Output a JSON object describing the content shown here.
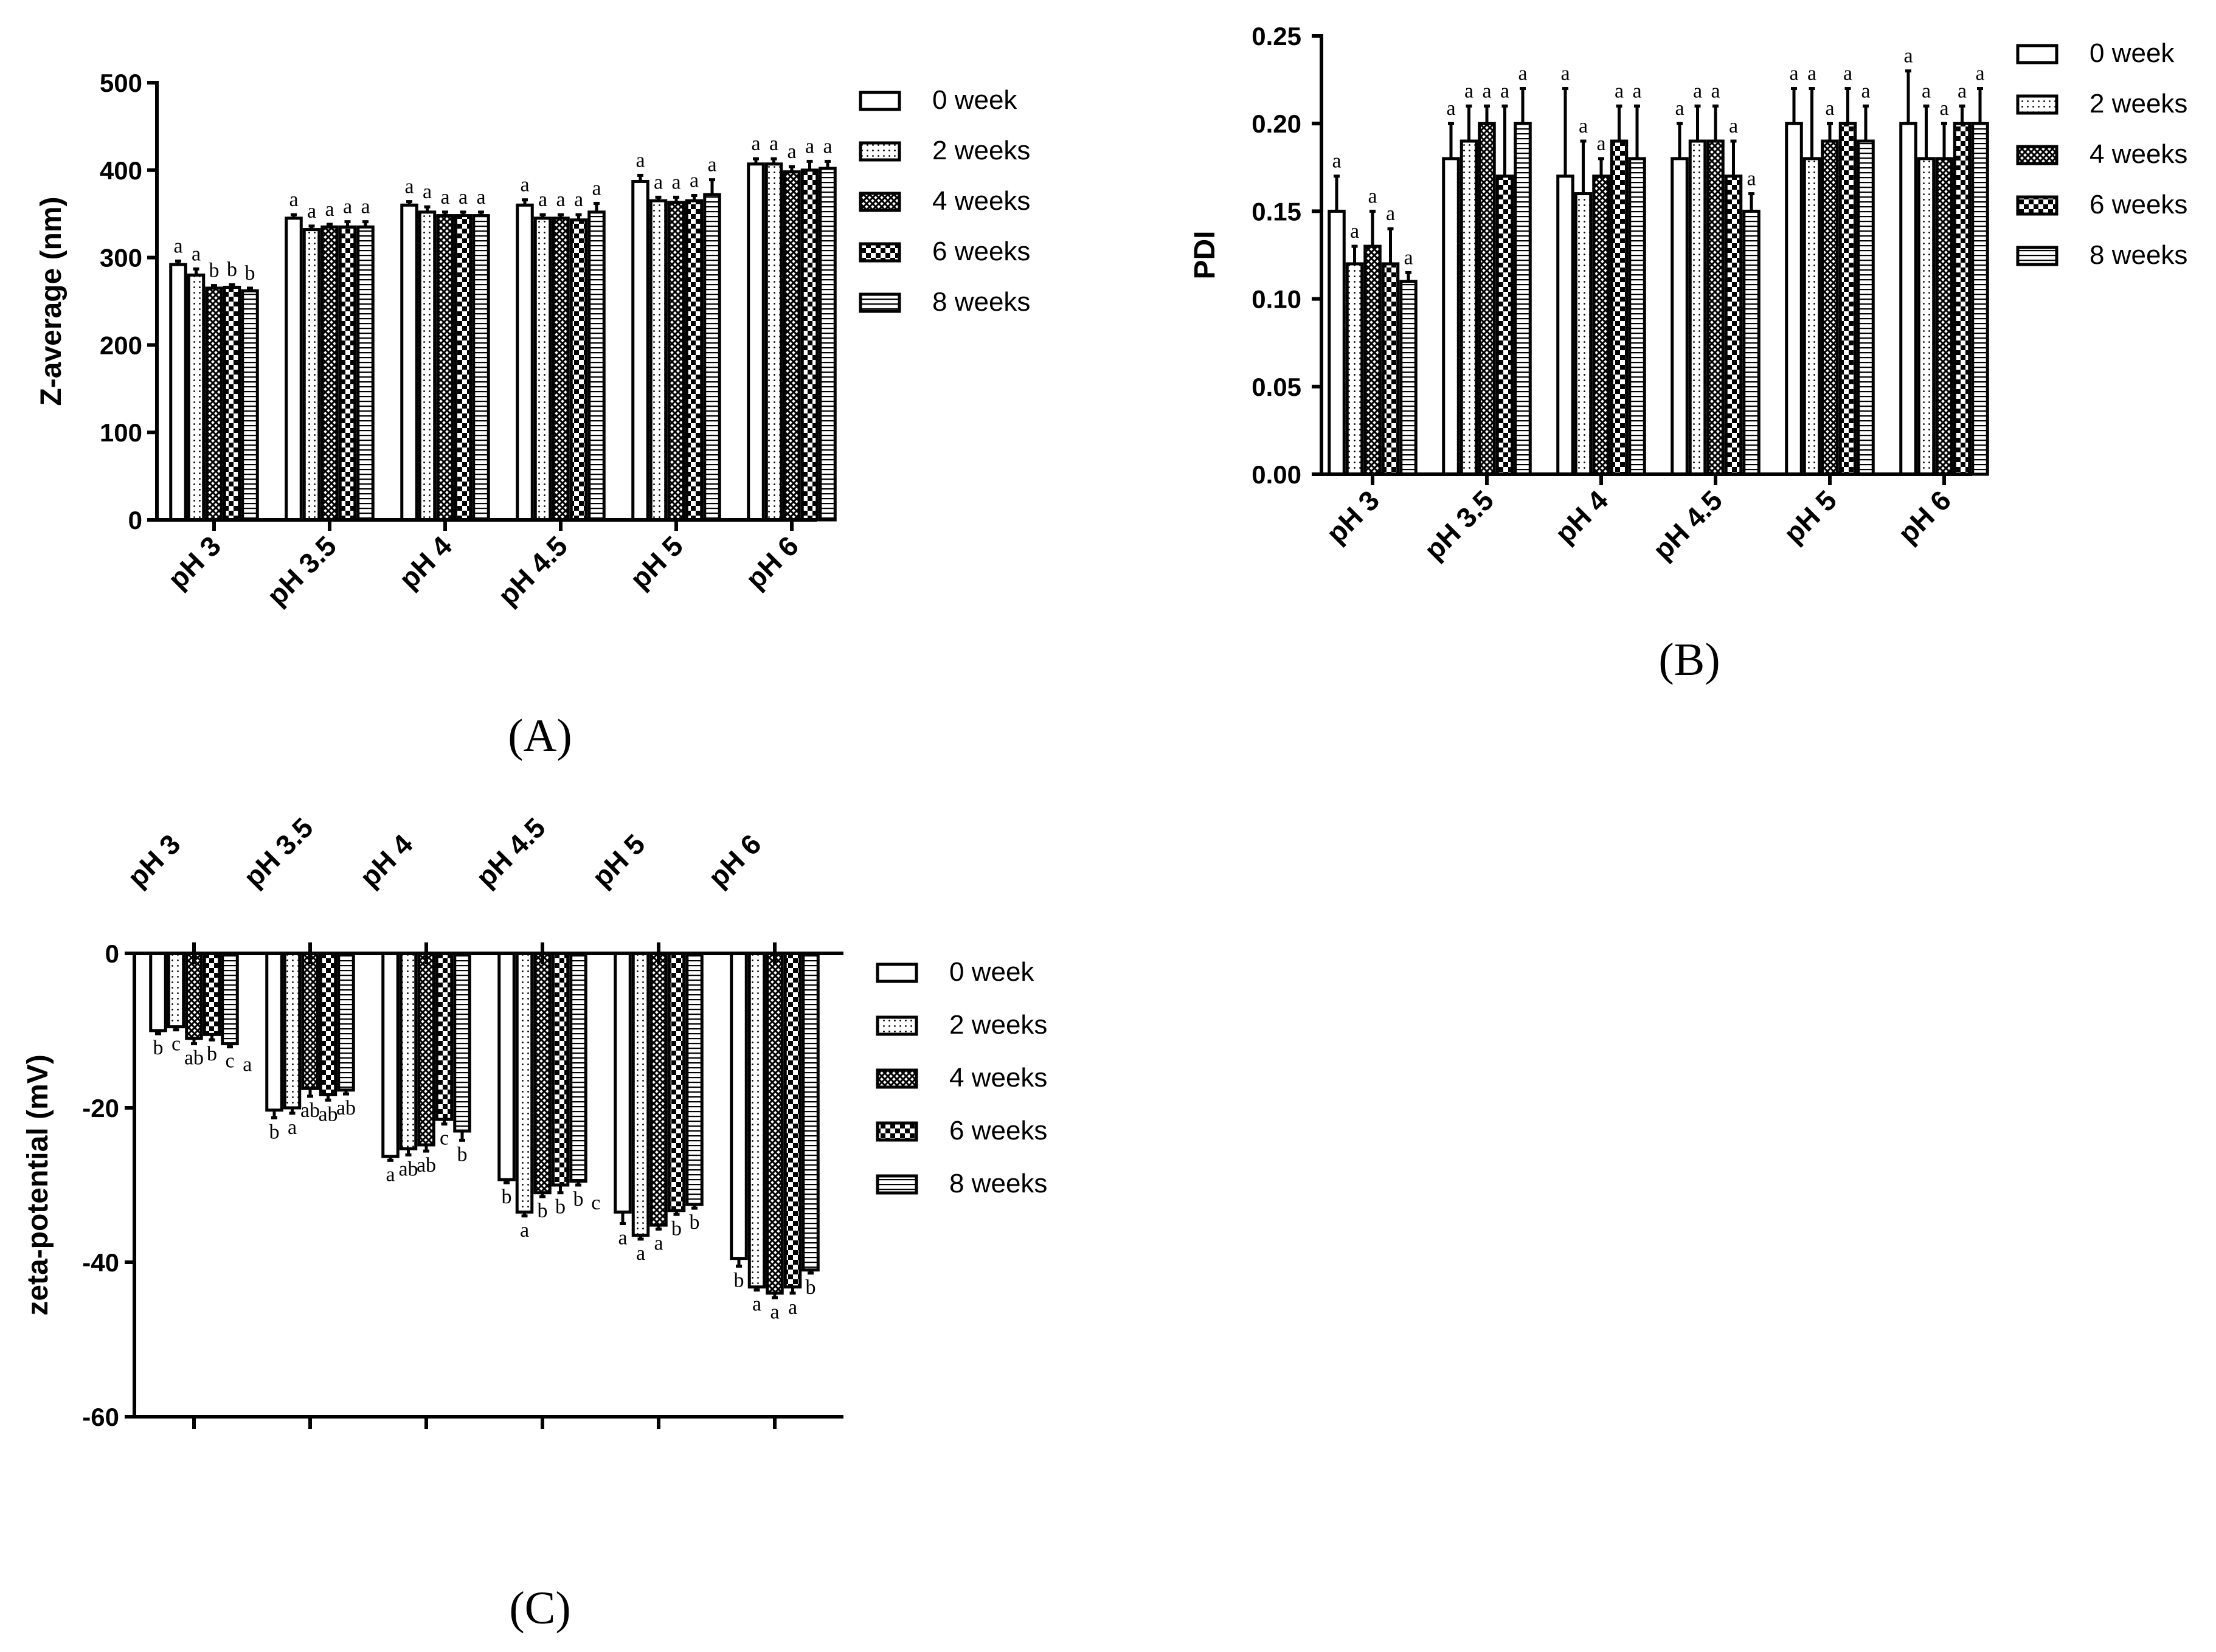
{
  "legend": [
    "0 week",
    "2 weeks",
    "4 weeks",
    "6 weeks",
    "8 weeks"
  ],
  "patterns": [
    "blank",
    "dots",
    "cross",
    "checker",
    "hlines"
  ],
  "colors": {
    "ink": "#000000",
    "paper": "#ffffff"
  },
  "chart_data": [
    {
      "id": "A",
      "caption": "(A)",
      "type": "bar",
      "ylabel": "Z-average (nm)",
      "ylim": [
        0,
        500
      ],
      "yticks": [
        "0",
        "100",
        "200",
        "300",
        "400",
        "500"
      ],
      "categories": [
        "pH 3",
        "pH 3.5",
        "pH 4",
        "pH 4.5",
        "pH 5",
        "pH 6"
      ],
      "series": [
        {
          "name": "0 week",
          "values": [
            292,
            345,
            360,
            360,
            387,
            407
          ],
          "errors": [
            4,
            4,
            4,
            6,
            7,
            6
          ],
          "letters": [
            "a",
            "a",
            "a",
            "a",
            "a",
            "a"
          ]
        },
        {
          "name": "2 weeks",
          "values": [
            280,
            332,
            352,
            345,
            365,
            407
          ],
          "errors": [
            7,
            4,
            6,
            4,
            4,
            6
          ],
          "letters": [
            "a",
            "a",
            "a",
            "a",
            "a",
            "a"
          ]
        },
        {
          "name": "4 weeks",
          "values": [
            265,
            335,
            348,
            345,
            363,
            398
          ],
          "errors": [
            3,
            3,
            4,
            4,
            6,
            6
          ],
          "letters": [
            "b",
            "a",
            "a",
            "a",
            "a",
            "a"
          ]
        },
        {
          "name": "6 weeks",
          "values": [
            266,
            335,
            348,
            343,
            365,
            400
          ],
          "errors": [
            3,
            6,
            4,
            6,
            6,
            10
          ],
          "letters": [
            "b",
            "a",
            "a",
            "a",
            "a",
            "a"
          ]
        },
        {
          "name": "8 weeks",
          "values": [
            262,
            335,
            348,
            352,
            372,
            402
          ],
          "errors": [
            3,
            6,
            4,
            10,
            17,
            8
          ],
          "letters": [
            "b",
            "a",
            "a",
            "a",
            "a",
            "a"
          ]
        }
      ]
    },
    {
      "id": "B",
      "caption": "(B)",
      "type": "bar",
      "ylabel": "PDI",
      "ylim": [
        0,
        0.25
      ],
      "yticks": [
        "0.00",
        "0.05",
        "0.10",
        "0.15",
        "0.20",
        "0.25"
      ],
      "categories": [
        "pH 3",
        "pH 3.5",
        "pH 4",
        "pH 4.5",
        "pH 5",
        "pH 6"
      ],
      "series": [
        {
          "name": "0 week",
          "values": [
            0.15,
            0.18,
            0.17,
            0.18,
            0.2,
            0.2
          ],
          "errors": [
            0.02,
            0.02,
            0.05,
            0.02,
            0.02,
            0.03
          ],
          "letters": [
            "a",
            "a",
            "a",
            "a",
            "a",
            "a"
          ]
        },
        {
          "name": "2 weeks",
          "values": [
            0.12,
            0.19,
            0.16,
            0.19,
            0.18,
            0.18
          ],
          "errors": [
            0.01,
            0.02,
            0.03,
            0.02,
            0.04,
            0.03
          ],
          "letters": [
            "a",
            "a",
            "a",
            "a",
            "a",
            "a"
          ]
        },
        {
          "name": "4 weeks",
          "values": [
            0.13,
            0.2,
            0.17,
            0.19,
            0.19,
            0.18
          ],
          "errors": [
            0.02,
            0.01,
            0.01,
            0.02,
            0.01,
            0.02
          ],
          "letters": [
            "a",
            "a",
            "a",
            "a",
            "a",
            "a"
          ]
        },
        {
          "name": "6 weeks",
          "values": [
            0.12,
            0.17,
            0.19,
            0.17,
            0.2,
            0.2
          ],
          "errors": [
            0.02,
            0.04,
            0.02,
            0.02,
            0.02,
            0.01
          ],
          "letters": [
            "a",
            "a",
            "a",
            "a",
            "a",
            "a"
          ]
        },
        {
          "name": "8 weeks",
          "values": [
            0.11,
            0.2,
            0.18,
            0.15,
            0.19,
            0.2
          ],
          "errors": [
            0.005,
            0.02,
            0.03,
            0.01,
            0.02,
            0.02
          ],
          "letters": [
            "a",
            "a",
            "a",
            "a",
            "a",
            "a"
          ]
        }
      ]
    },
    {
      "id": "C",
      "caption": "(C)",
      "type": "bar",
      "ylabel": "zeta-potential (mV)",
      "ylim": [
        -60,
        0
      ],
      "yticks": [
        "0",
        "-20",
        "-40",
        "-60"
      ],
      "categories": [
        "pH 3",
        "pH 3.5",
        "pH 4",
        "pH 4.5",
        "pH 5",
        "pH 6"
      ],
      "series": [
        {
          "name": "0 week",
          "values": [
            -10,
            -20.3,
            -26.3,
            -29.3,
            -33.5,
            -39.5
          ],
          "errors": [
            0.4,
            1,
            0.5,
            0.4,
            1.5,
            1
          ],
          "letters": [
            "b",
            "b",
            "a",
            "b",
            "a",
            "b"
          ]
        },
        {
          "name": "2 weeks",
          "values": [
            -9.5,
            -20,
            -25.3,
            -33.5,
            -36.5,
            -43.2
          ],
          "errors": [
            0.4,
            0.7,
            0.8,
            0.5,
            0.5,
            0.4
          ],
          "letters": [
            "c",
            "a",
            "ab",
            "a",
            "a",
            "a"
          ]
        },
        {
          "name": "4 weeks",
          "values": [
            -11,
            -17.5,
            -24.8,
            -31,
            -35.2,
            -44
          ],
          "errors": [
            0.7,
            1,
            0.8,
            0.5,
            0.5,
            0.6
          ],
          "letters": [
            "ab",
            "ab",
            "ab",
            "b",
            "a",
            "a"
          ]
        },
        {
          "name": "6 weeks",
          "values": [
            -10.5,
            -18.3,
            -21.5,
            -30,
            -33.3,
            -43.2
          ],
          "errors": [
            0.7,
            0.7,
            0.6,
            1,
            0.5,
            0.8
          ],
          "letters": [
            "b",
            "ab",
            "c",
            "b",
            "b",
            "a"
          ]
        },
        {
          "name": "8 weeks",
          "values": [
            -11.7,
            -17.7,
            -23,
            -29.5,
            -32.5,
            -41
          ],
          "errors": [
            0.4,
            0.5,
            1.2,
            0.5,
            0.5,
            0.4
          ],
          "letters": [
            "c",
            "ab",
            "b",
            "b",
            "b",
            "b"
          ]
        }
      ],
      "extra_labels": [
        {
          "category": 0,
          "text": "a"
        },
        {
          "category": 3,
          "text": "c"
        }
      ]
    }
  ]
}
